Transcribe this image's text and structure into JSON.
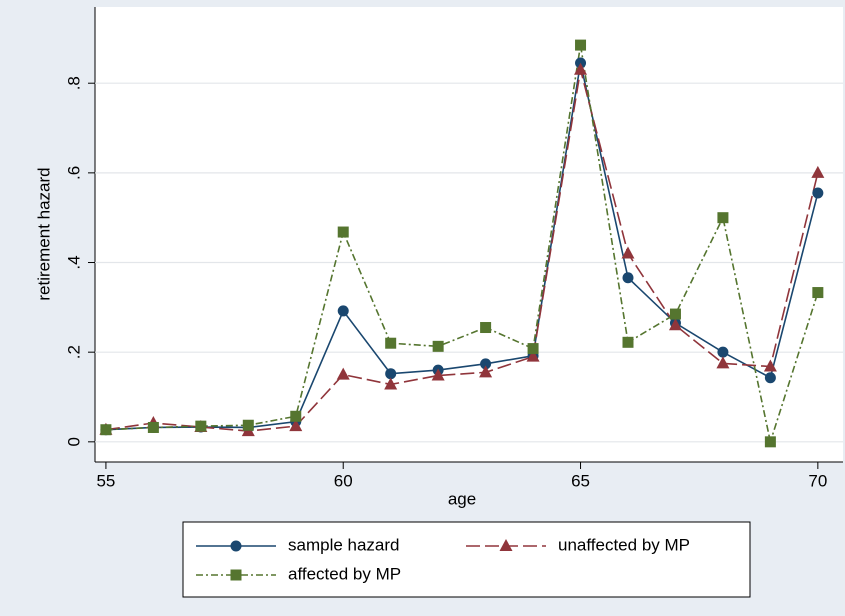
{
  "chart_data": {
    "type": "line",
    "xlabel": "age",
    "ylabel": "retirement hazard",
    "x": [
      55,
      56,
      57,
      58,
      59,
      60,
      61,
      62,
      63,
      64,
      65,
      66,
      67,
      68,
      69,
      70
    ],
    "xlim": [
      54.77,
      70.53
    ],
    "xticks": [
      55,
      60,
      65,
      70
    ],
    "ylim": [
      -0.045,
      0.97
    ],
    "yticks": [
      0,
      {
        "value": 0.2,
        "label": ".2"
      },
      {
        "value": 0.4,
        "label": ".4"
      },
      {
        "value": 0.6,
        "label": ".6"
      },
      {
        "value": 0.8,
        "label": ".8"
      }
    ],
    "grid": true,
    "series": [
      {
        "name": "sample hazard",
        "color": "#1a476f",
        "marker": "circle",
        "dash": "none",
        "values": [
          0.027,
          0.032,
          0.033,
          0.032,
          0.045,
          0.292,
          0.152,
          0.16,
          0.174,
          0.192,
          0.845,
          0.366,
          0.265,
          0.2,
          0.143,
          0.555
        ]
      },
      {
        "name": "unaffected by MP",
        "color": "#90353b",
        "marker": "triangle",
        "dash": "14 5",
        "values": [
          0.027,
          0.042,
          0.033,
          0.024,
          0.035,
          0.15,
          0.128,
          0.148,
          0.155,
          0.19,
          0.83,
          0.42,
          0.26,
          0.175,
          0.168,
          0.6
        ]
      },
      {
        "name": "affected by MP",
        "color": "#55752f",
        "marker": "square",
        "dash": "7 3 2 3",
        "values": [
          0.027,
          0.032,
          0.035,
          0.037,
          0.057,
          0.468,
          0.22,
          0.213,
          0.255,
          0.208,
          0.885,
          0.222,
          0.285,
          0.5,
          0,
          0.333
        ]
      }
    ]
  }
}
